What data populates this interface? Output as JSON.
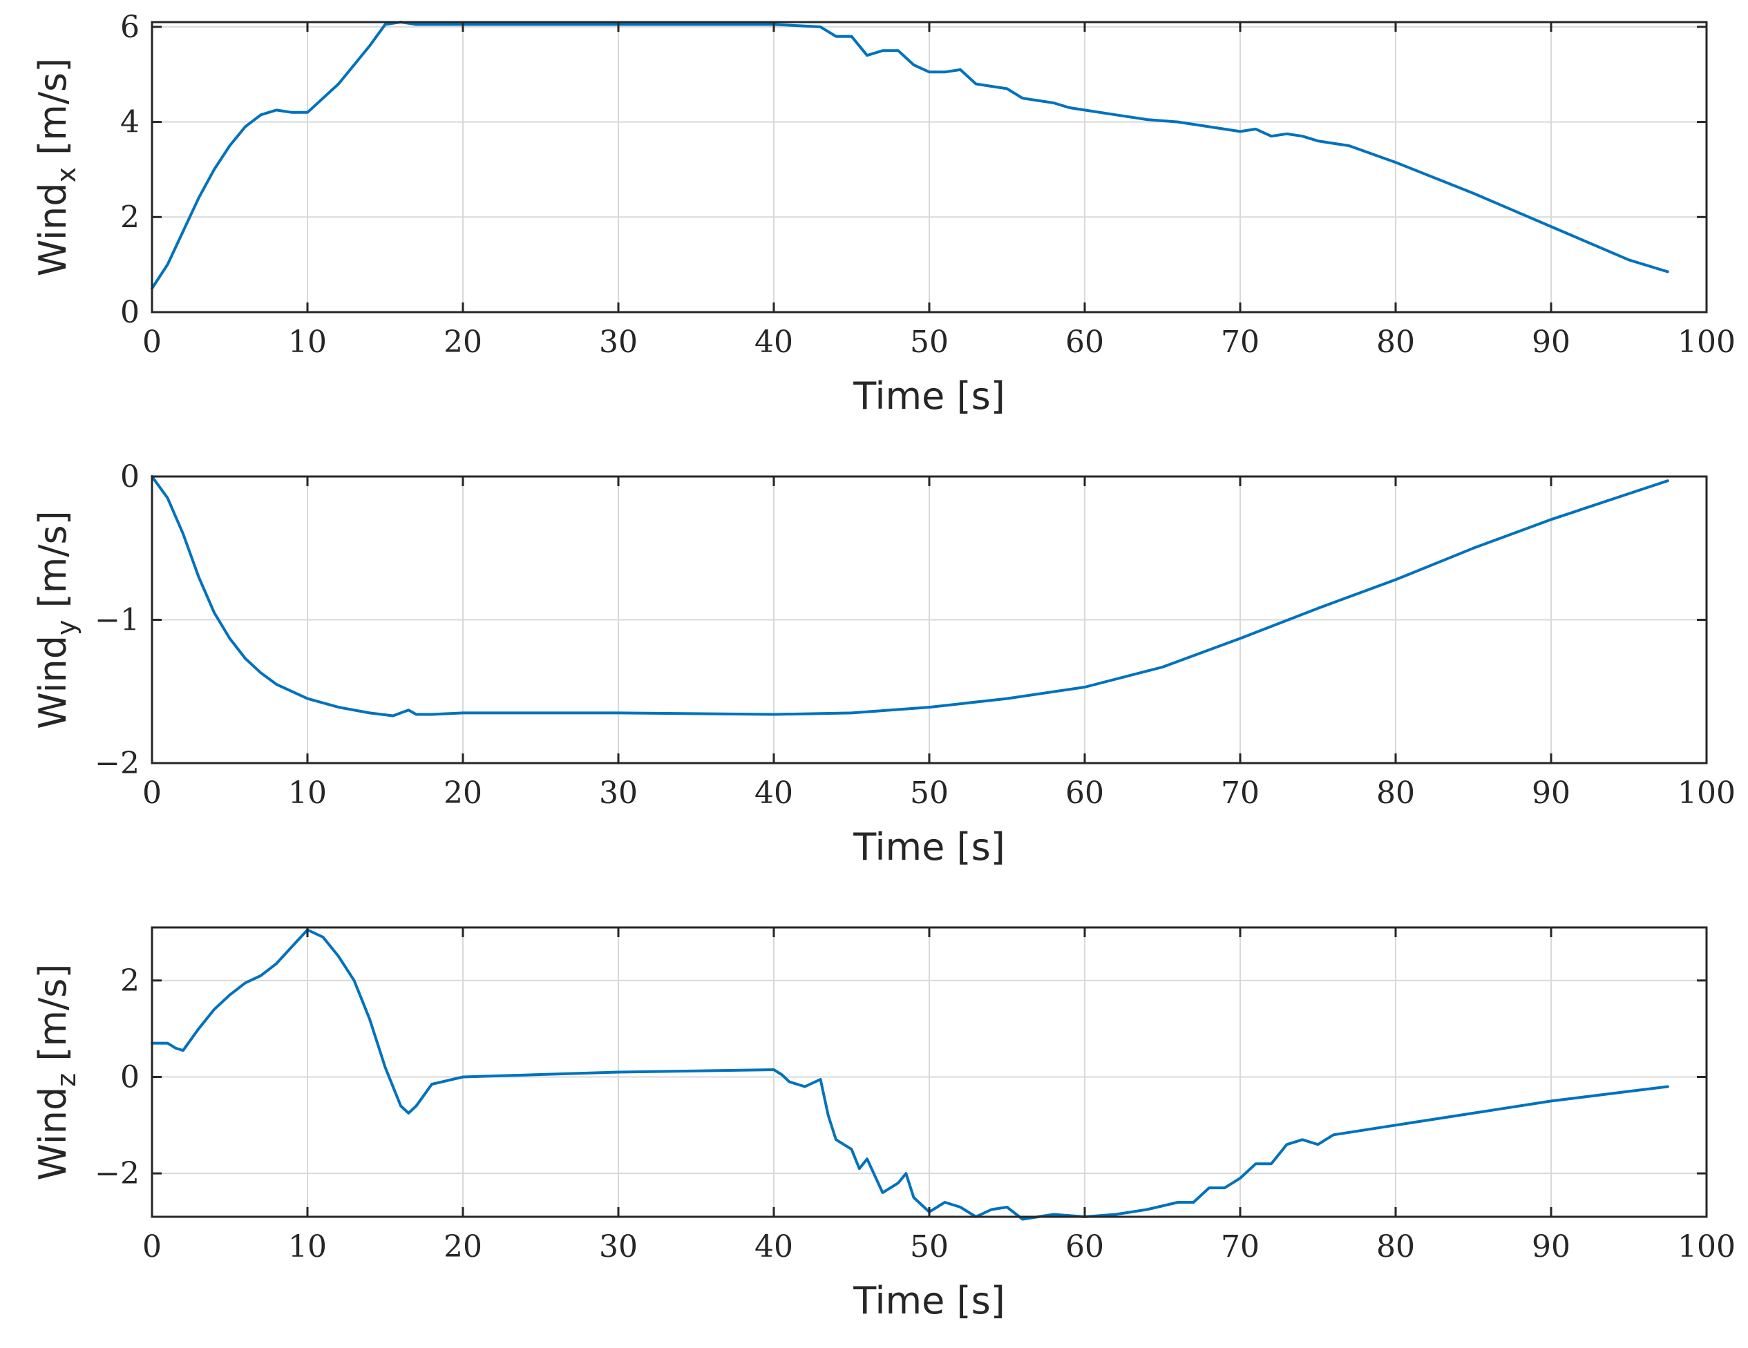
{
  "colors": {
    "series": "#0072bd",
    "axes": "#262626",
    "grid": "#d9d9d9",
    "background": "#ffffff"
  },
  "chart_data": [
    {
      "type": "line",
      "xlabel": "Time [s]",
      "ylabel": {
        "main": "Wind",
        "sub": "x",
        "unit": " [m/s]"
      },
      "xlim": [
        0,
        100
      ],
      "ylim": [
        0,
        6.1
      ],
      "xticks": [
        0,
        10,
        20,
        30,
        40,
        50,
        60,
        70,
        80,
        90,
        100
      ],
      "yticks": [
        0,
        2,
        4,
        6
      ],
      "xtick_labels": [
        "0",
        "10",
        "20",
        "30",
        "40",
        "50",
        "60",
        "70",
        "80",
        "90",
        "100"
      ],
      "ytick_labels": [
        "0",
        "2",
        "4",
        "6"
      ],
      "grid": true,
      "series": [
        {
          "x": [
            0,
            1,
            2,
            3,
            4,
            5,
            6,
            7,
            8,
            9,
            10,
            11,
            12,
            13,
            14,
            15,
            16,
            17,
            20,
            30,
            40,
            43,
            44,
            45,
            46,
            47,
            48,
            49,
            50,
            51,
            52,
            53,
            54,
            55,
            56,
            57,
            58,
            59,
            60,
            62,
            64,
            66,
            68,
            70,
            71,
            72,
            73,
            74,
            75,
            76,
            77,
            80,
            85,
            90,
            95,
            97.5
          ],
          "y": [
            0.5,
            1.0,
            1.7,
            2.4,
            3.0,
            3.5,
            3.9,
            4.15,
            4.25,
            4.2,
            4.2,
            4.5,
            4.8,
            5.2,
            5.6,
            6.05,
            6.1,
            6.05,
            6.05,
            6.05,
            6.05,
            6.0,
            5.8,
            5.8,
            5.4,
            5.5,
            5.5,
            5.2,
            5.05,
            5.05,
            5.1,
            4.8,
            4.75,
            4.7,
            4.5,
            4.45,
            4.4,
            4.3,
            4.25,
            4.15,
            4.05,
            4.0,
            3.9,
            3.8,
            3.85,
            3.7,
            3.75,
            3.7,
            3.6,
            3.55,
            3.5,
            3.15,
            2.5,
            1.8,
            1.1,
            0.85
          ]
        }
      ]
    },
    {
      "type": "line",
      "xlabel": "Time [s]",
      "ylabel": {
        "main": "Wind",
        "sub": "y",
        "unit": " [m/s]"
      },
      "xlim": [
        0,
        100
      ],
      "ylim": [
        -2,
        0
      ],
      "xticks": [
        0,
        10,
        20,
        30,
        40,
        50,
        60,
        70,
        80,
        90,
        100
      ],
      "yticks": [
        -2,
        -1,
        0
      ],
      "xtick_labels": [
        "0",
        "10",
        "20",
        "30",
        "40",
        "50",
        "60",
        "70",
        "80",
        "90",
        "100"
      ],
      "ytick_labels": [
        "−2",
        "−1",
        "0"
      ],
      "grid": true,
      "series": [
        {
          "x": [
            0,
            1,
            2,
            3,
            4,
            5,
            6,
            7,
            8,
            10,
            12,
            14,
            15.5,
            16,
            16.5,
            17,
            18,
            20,
            30,
            40,
            45,
            50,
            55,
            60,
            65,
            70,
            75,
            80,
            85,
            90,
            95,
            97.5
          ],
          "y": [
            0,
            -0.15,
            -0.4,
            -0.7,
            -0.95,
            -1.13,
            -1.27,
            -1.37,
            -1.45,
            -1.55,
            -1.61,
            -1.65,
            -1.67,
            -1.65,
            -1.63,
            -1.66,
            -1.66,
            -1.65,
            -1.65,
            -1.66,
            -1.65,
            -1.61,
            -1.55,
            -1.47,
            -1.33,
            -1.13,
            -0.92,
            -0.72,
            -0.5,
            -0.3,
            -0.12,
            -0.03
          ]
        }
      ]
    },
    {
      "type": "line",
      "xlabel": "Time [s]",
      "ylabel": {
        "main": "Wind",
        "sub": "z",
        "unit": " [m/s]"
      },
      "xlim": [
        0,
        100
      ],
      "ylim": [
        -2.9,
        3.1
      ],
      "xticks": [
        0,
        10,
        20,
        30,
        40,
        50,
        60,
        70,
        80,
        90,
        100
      ],
      "yticks": [
        -2,
        0,
        2
      ],
      "xtick_labels": [
        "0",
        "10",
        "20",
        "30",
        "40",
        "50",
        "60",
        "70",
        "80",
        "90",
        "100"
      ],
      "ytick_labels": [
        "−2",
        "0",
        "2"
      ],
      "grid": true,
      "series": [
        {
          "x": [
            0,
            1,
            1.5,
            2,
            3,
            4,
            5,
            6,
            7,
            8,
            9,
            10,
            11,
            12,
            13,
            14,
            15,
            16,
            16.5,
            17,
            18,
            20,
            30,
            40,
            40.5,
            41,
            42,
            43,
            43.5,
            44,
            45,
            45.5,
            46,
            47,
            48,
            48.5,
            49,
            50,
            51,
            52,
            53,
            54,
            55,
            56,
            57,
            58,
            60,
            62,
            64,
            66,
            67,
            68,
            69,
            70,
            71,
            72,
            73,
            74,
            75,
            76,
            77,
            80,
            85,
            90,
            95,
            97.5
          ],
          "y": [
            0.7,
            0.7,
            0.6,
            0.55,
            1.0,
            1.4,
            1.7,
            1.95,
            2.1,
            2.35,
            2.7,
            3.05,
            2.9,
            2.5,
            2.0,
            1.2,
            0.2,
            -0.6,
            -0.75,
            -0.6,
            -0.15,
            0.0,
            0.1,
            0.15,
            0.05,
            -0.1,
            -0.2,
            -0.05,
            -0.8,
            -1.3,
            -1.5,
            -1.9,
            -1.7,
            -2.4,
            -2.2,
            -2.0,
            -2.5,
            -2.8,
            -2.6,
            -2.7,
            -2.9,
            -2.75,
            -2.7,
            -2.95,
            -2.9,
            -2.85,
            -2.9,
            -2.85,
            -2.75,
            -2.6,
            -2.6,
            -2.3,
            -2.3,
            -2.1,
            -1.8,
            -1.8,
            -1.4,
            -1.3,
            -1.4,
            -1.2,
            -1.15,
            -1.0,
            -0.75,
            -0.5,
            -0.3,
            -0.2
          ]
        }
      ]
    }
  ]
}
